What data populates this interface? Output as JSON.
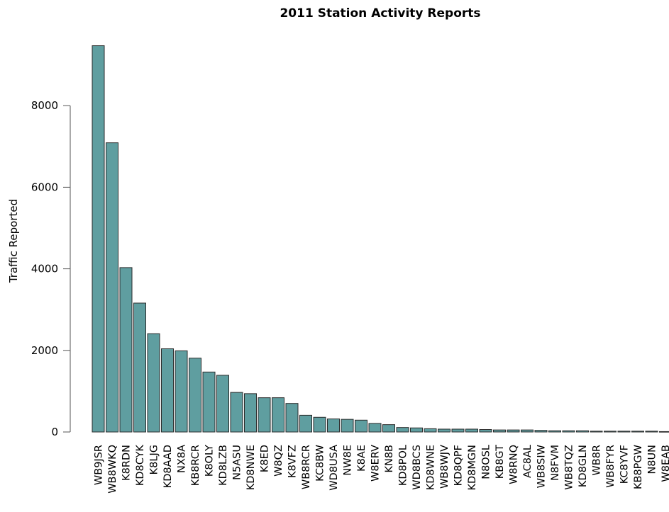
{
  "colors": {
    "bar": "#5f9ea0",
    "bar_stroke": "#2b2b2b",
    "background": "#ffffff"
  },
  "chart_data": {
    "type": "bar",
    "title": "2011 Station Activity Reports",
    "xlabel": "",
    "ylabel": "Traffic Reported",
    "ylim": [
      0,
      9600
    ],
    "yticks": [
      0,
      2000,
      4000,
      6000,
      8000
    ],
    "grid": false,
    "categories": [
      "WB9JSR",
      "WB8WKQ",
      "K8RDN",
      "KD8CYK",
      "K8LJG",
      "KD8AAD",
      "NX8A",
      "KB8RCR",
      "K8OLY",
      "KD8LZB",
      "N5ASU",
      "KD8NWE",
      "K8ED",
      "W8QZ",
      "K8VFZ",
      "WB8RCR",
      "KC8BW",
      "WD8USA",
      "NW8E",
      "K8AE",
      "W8ERV",
      "KN8B",
      "KD8POL",
      "WD8BCS",
      "KD8WNE",
      "WB8WJV",
      "KD8QPF",
      "KD8MGN",
      "N8OSL",
      "KB8GT",
      "W8RNQ",
      "AC8AL",
      "WB8SIW",
      "N8FVM",
      "WB8TQZ",
      "KD8GLN",
      "WB8R",
      "WB8FYR",
      "KC8YVF",
      "KB8PGW",
      "N8UN",
      "W8EAB"
    ],
    "values": [
      9470,
      7090,
      4030,
      3160,
      2410,
      2040,
      1990,
      1810,
      1470,
      1390,
      970,
      940,
      840,
      840,
      700,
      410,
      360,
      320,
      310,
      290,
      210,
      180,
      110,
      100,
      80,
      70,
      70,
      70,
      60,
      50,
      50,
      50,
      40,
      30,
      30,
      30,
      20,
      20,
      20,
      20,
      20,
      10
    ]
  }
}
